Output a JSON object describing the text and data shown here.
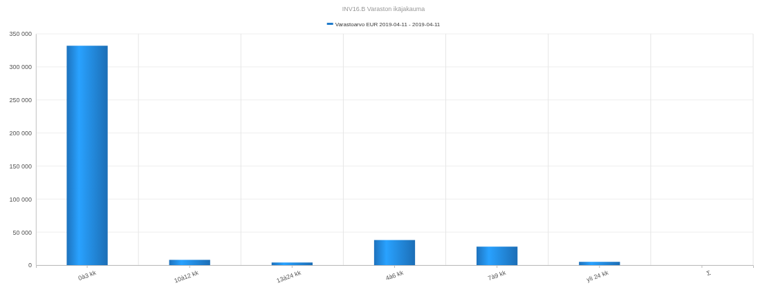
{
  "chart_data": {
    "type": "bar",
    "title": "INV16.B Varaston ikäjakauma",
    "categories": [
      "0à3 kk",
      "10à12 kk",
      "13à24 kk",
      "4à6 kk",
      "7à9 kk",
      "yli 24 kk",
      "Σ"
    ],
    "series": [
      {
        "name": "Varastoarvo EUR 2019-04-11 - 2019-04-11",
        "color": "#1f7acb",
        "values": [
          332000,
          8000,
          4000,
          38000,
          28000,
          5000,
          null
        ]
      }
    ],
    "ylim": [
      0,
      350000
    ],
    "yticks": [
      {
        "value": 0,
        "label": "0"
      },
      {
        "value": 50000,
        "label": "50 000"
      },
      {
        "value": 100000,
        "label": "100 000"
      },
      {
        "value": 150000,
        "label": "150 000"
      },
      {
        "value": 200000,
        "label": "200 000"
      },
      {
        "value": 250000,
        "label": "250 000"
      },
      {
        "value": 300000,
        "label": "300 000"
      },
      {
        "value": 350000,
        "label": "350 000"
      }
    ],
    "grid": true,
    "legend": "top"
  }
}
